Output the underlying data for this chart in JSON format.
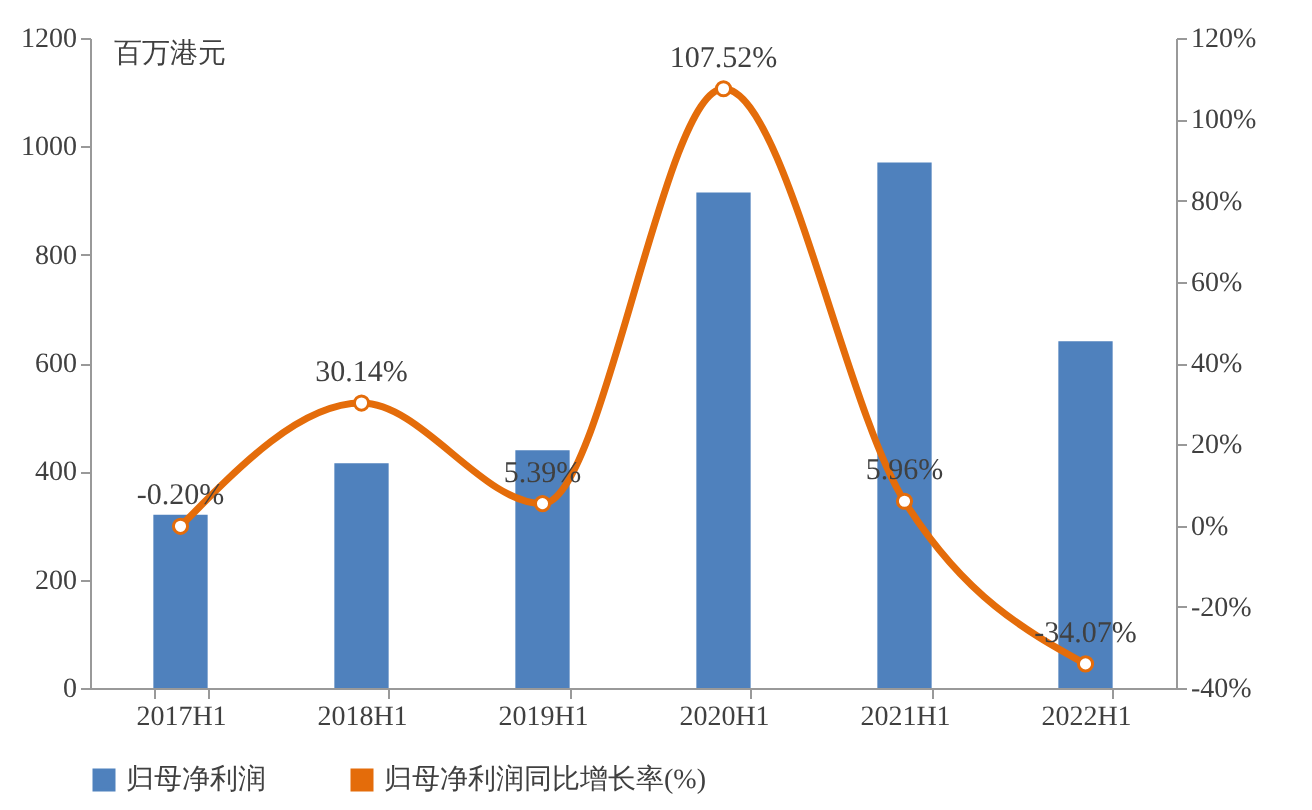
{
  "chart_data": {
    "type": "bar",
    "ylabel": "百万港元",
    "categories": [
      "2017H1",
      "2018H1",
      "2019H1",
      "2020H1",
      "2021H1",
      "2022H1"
    ],
    "series": [
      {
        "name": "归母净利润",
        "color": "#4f81bd",
        "values": [
          320,
          415,
          439,
          915,
          970,
          640
        ]
      },
      {
        "name": "归母净利润同比增长率(%)",
        "type": "line",
        "axis": "y2",
        "color": "#e46c0a",
        "marker": "circle",
        "values": [
          -0.2,
          30.14,
          5.39,
          107.52,
          5.96,
          -34.07
        ],
        "value_labels": [
          "-0.20%",
          "30.14%",
          "5.39%",
          "107.52%",
          "5.96%",
          "-34.07%"
        ]
      }
    ],
    "ylim": [
      0,
      1200
    ],
    "yticks": [
      0,
      200,
      400,
      600,
      800,
      1000,
      1200
    ],
    "y2lim": [
      -40,
      120
    ],
    "y2ticks": [
      {
        "value": -40,
        "label": "-40%"
      },
      {
        "value": -20,
        "label": "-20%"
      },
      {
        "value": 0,
        "label": "0%"
      },
      {
        "value": 20,
        "label": "20%"
      },
      {
        "value": 40,
        "label": "40%"
      },
      {
        "value": 60,
        "label": "60%"
      },
      {
        "value": 80,
        "label": "80%"
      },
      {
        "value": 100,
        "label": "100%"
      },
      {
        "value": 120,
        "label": "120%"
      }
    ],
    "grid": false,
    "legend": "bottom"
  }
}
